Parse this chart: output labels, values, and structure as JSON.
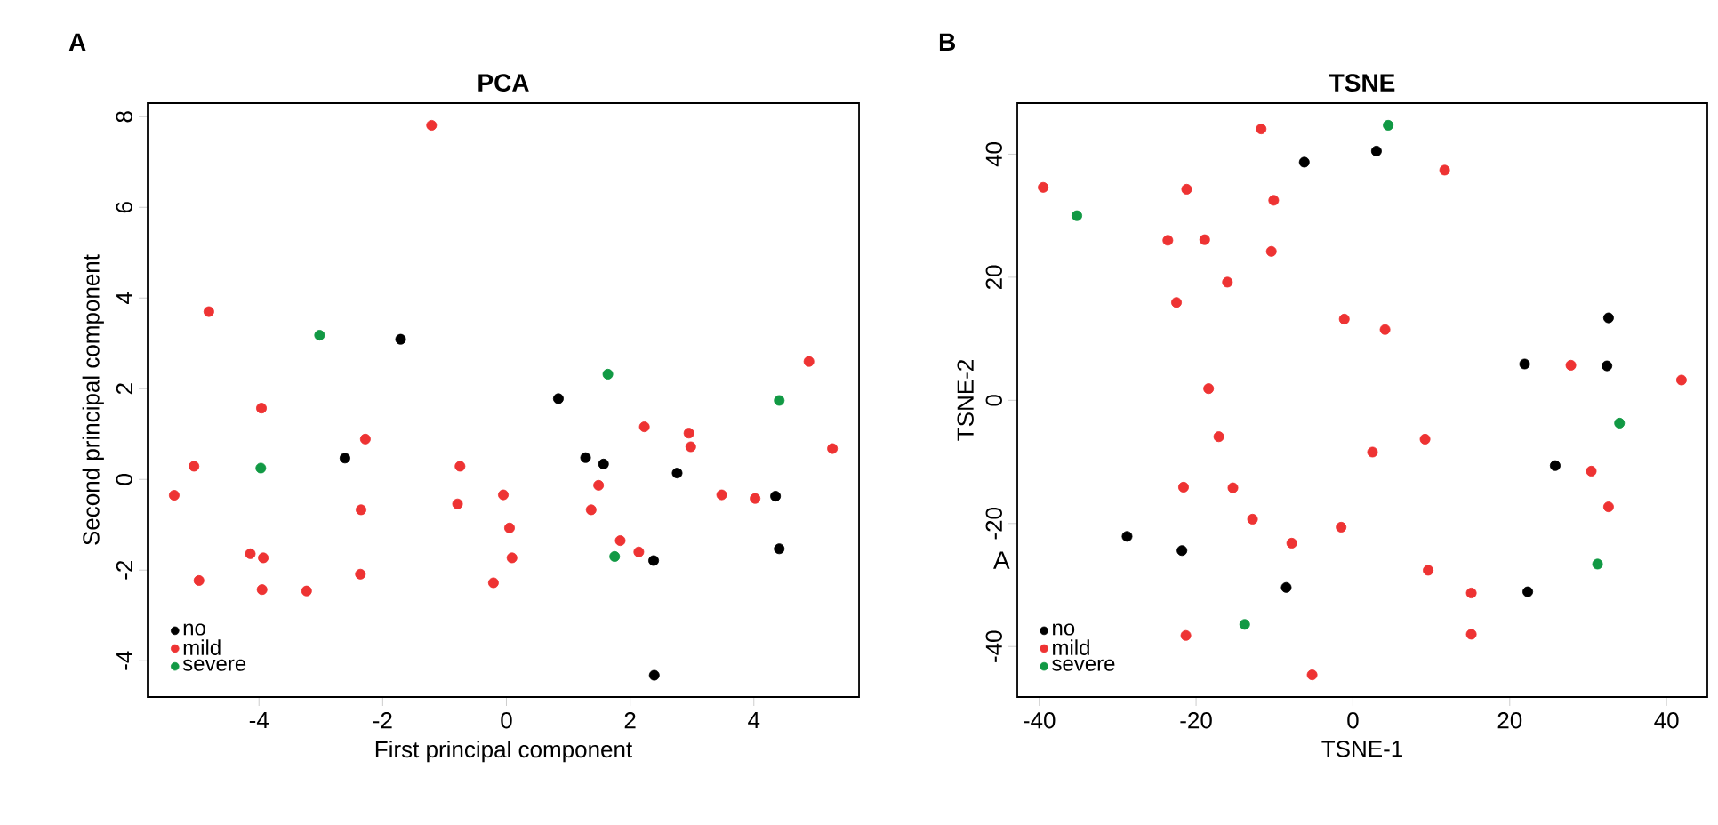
{
  "chart_data": [
    {
      "type": "scatter",
      "title": "PCA",
      "xlabel": "First principal component",
      "ylabel": "Second principal component",
      "xlim": [
        -5.8,
        5.7
      ],
      "ylim": [
        -4.8,
        8.3
      ],
      "xticks": [
        -4,
        -2,
        0,
        2,
        4
      ],
      "yticks": [
        -4,
        -2,
        0,
        2,
        4,
        6,
        8
      ],
      "legend": "bottom left",
      "annotations": [
        "A"
      ],
      "series": [
        {
          "name": "no",
          "color": "#000000",
          "x": [
            -1.71,
            -2.61,
            0.84,
            1.28,
            1.57,
            2.76,
            4.35,
            4.41,
            2.38,
            2.39
          ],
          "values": [
            3.09,
            0.47,
            1.78,
            0.48,
            0.34,
            0.14,
            -0.37,
            -1.53,
            -1.79,
            -4.32
          ]
        },
        {
          "name": "mild",
          "color": "#ee3333",
          "x": [
            -1.21,
            -4.81,
            -3.96,
            -2.28,
            -5.05,
            -5.37,
            -0.75,
            -0.79,
            -2.35,
            -0.05,
            0.05,
            0.09,
            -0.21,
            -4.14,
            -3.93,
            -4.97,
            -3.95,
            -3.23,
            -2.36,
            2.23,
            2.95,
            2.98,
            1.49,
            1.37,
            1.84,
            2.14,
            3.48,
            4.02,
            4.89,
            5.27
          ],
          "values": [
            7.81,
            3.7,
            1.57,
            0.89,
            0.29,
            -0.35,
            0.29,
            -0.54,
            -0.67,
            -0.34,
            -1.07,
            -1.73,
            -2.28,
            -1.64,
            -1.73,
            -2.23,
            -2.43,
            -2.46,
            -2.09,
            1.16,
            1.02,
            0.72,
            -0.13,
            -0.67,
            -1.35,
            -1.6,
            -0.34,
            -0.42,
            2.6,
            0.68
          ]
        },
        {
          "name": "severe",
          "color": "#119944",
          "x": [
            -3.02,
            -3.97,
            1.64,
            4.41,
            1.75
          ],
          "values": [
            3.18,
            0.25,
            2.32,
            1.74,
            -1.7
          ]
        }
      ]
    },
    {
      "type": "scatter",
      "title": "TSNE",
      "xlabel": "TSNE-1",
      "ylabel": "TSNE-2",
      "xlim": [
        -42.8,
        45.2
      ],
      "ylim": [
        -48.2,
        48.3
      ],
      "xticks": [
        -40,
        -20,
        0,
        20,
        40
      ],
      "yticks": [
        -40,
        -20,
        0,
        20,
        40
      ],
      "legend": "bottom left",
      "annotations": [
        "B",
        "A"
      ],
      "series": [
        {
          "name": "no",
          "color": "#000000",
          "x": [
            -6.2,
            3.0,
            32.6,
            21.9,
            32.4,
            25.8,
            -28.8,
            -21.8,
            -8.5,
            22.3
          ],
          "values": [
            38.7,
            40.5,
            13.4,
            5.9,
            5.6,
            -10.6,
            -22.1,
            -24.4,
            -30.4,
            -31.1
          ]
        },
        {
          "name": "mild",
          "color": "#ee3333",
          "x": [
            -11.7,
            -39.5,
            -21.2,
            -10.1,
            11.7,
            -23.6,
            -18.9,
            -10.4,
            -16.0,
            -22.5,
            -1.1,
            4.1,
            -18.4,
            -17.1,
            9.2,
            2.5,
            27.8,
            41.9,
            30.4,
            32.6,
            -21.6,
            -15.3,
            -12.8,
            -7.8,
            -1.5,
            9.6,
            15.1,
            15.1,
            -21.3,
            -5.2
          ],
          "values": [
            44.1,
            34.6,
            34.3,
            32.5,
            37.4,
            26.0,
            26.1,
            24.2,
            19.2,
            15.9,
            13.2,
            11.5,
            1.9,
            -5.9,
            -6.3,
            -8.4,
            5.7,
            3.3,
            -11.5,
            -17.3,
            -14.1,
            -14.2,
            -19.3,
            -23.2,
            -20.6,
            -27.6,
            -31.3,
            -38.0,
            -38.2,
            -44.6
          ]
        },
        {
          "name": "severe",
          "color": "#119944",
          "x": [
            4.5,
            -35.2,
            34.0,
            31.2,
            -13.8
          ],
          "values": [
            44.7,
            30.0,
            -3.7,
            -26.6,
            -36.4
          ]
        }
      ]
    }
  ]
}
